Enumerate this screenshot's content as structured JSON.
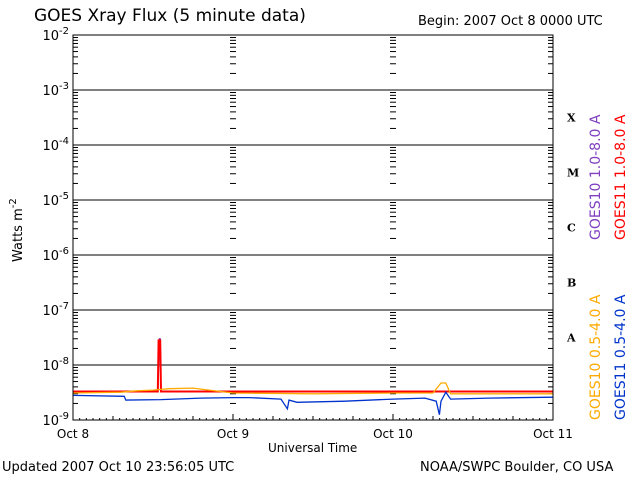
{
  "header": {
    "title": "GOES Xray Flux (5 minute data)",
    "begin": "Begin:  2007 Oct 8 0000 UTC"
  },
  "footer": {
    "updated": "Updated 2007 Oct 10 23:56:05 UTC",
    "credit": "NOAA/SWPC Boulder, CO USA"
  },
  "chart_data": {
    "type": "line",
    "title": "GOES Xray Flux (5 minute data)",
    "xlabel": "Universal Time",
    "ylabel": "Watts m",
    "ylabel_sup": "-2",
    "y_scale": "log",
    "ylim": [
      1e-09,
      0.01
    ],
    "xlim": [
      0,
      3
    ],
    "x_unit": "days since 2007 Oct 8 0000 UTC",
    "grid": true,
    "x_ticks": [
      {
        "x": 0,
        "label": "Oct 8"
      },
      {
        "x": 1,
        "label": "Oct 9"
      },
      {
        "x": 2,
        "label": "Oct 10"
      },
      {
        "x": 3,
        "label": "Oct 11"
      }
    ],
    "y_ticks": [
      {
        "base": "10",
        "exp": "-9",
        "value": 1e-09
      },
      {
        "base": "10",
        "exp": "-8",
        "value": 1e-08
      },
      {
        "base": "10",
        "exp": "-7",
        "value": 1e-07
      },
      {
        "base": "10",
        "exp": "-6",
        "value": 1e-06
      },
      {
        "base": "10",
        "exp": "-5",
        "value": 1e-05
      },
      {
        "base": "10",
        "exp": "-4",
        "value": 0.0001
      },
      {
        "base": "10",
        "exp": "-3",
        "value": 0.001
      },
      {
        "base": "10",
        "exp": "-2",
        "value": 0.01
      }
    ],
    "flare_classes": [
      {
        "label": "A",
        "value": 3.16e-08
      },
      {
        "label": "B",
        "value": 3.16e-07
      },
      {
        "label": "C",
        "value": 3.16e-06
      },
      {
        "label": "M",
        "value": 3.16e-05
      },
      {
        "label": "X",
        "value": 0.000316
      }
    ],
    "legend_position": "right, vertical",
    "series": [
      {
        "name": "GOES10 1.0-8.0 A",
        "color": "#7f3fbf",
        "points": [
          [
            0,
            3.25e-09
          ],
          [
            0.48,
            3.25e-09
          ],
          [
            0.53,
            3.3e-09
          ],
          [
            0.54,
            3e-08
          ],
          [
            0.545,
            3e-08
          ],
          [
            0.55,
            3.3e-09
          ],
          [
            1.0,
            3.25e-09
          ],
          [
            3,
            3.25e-09
          ]
        ]
      },
      {
        "name": "GOES11 1.0-8.0 A",
        "color": "#ff0000",
        "points": [
          [
            0,
            3.3e-09
          ],
          [
            0.53,
            3.3e-09
          ],
          [
            0.535,
            2.8e-08
          ],
          [
            0.545,
            2.8e-08
          ],
          [
            0.55,
            3.3e-09
          ],
          [
            3,
            3.3e-09
          ]
        ]
      },
      {
        "name": "GOES10 0.5-4.0 A",
        "color": "#ffaa00",
        "points": [
          [
            0,
            3.1e-09
          ],
          [
            0.3,
            3.2e-09
          ],
          [
            0.4,
            3.4e-09
          ],
          [
            0.5,
            3.5e-09
          ],
          [
            0.6,
            3.7e-09
          ],
          [
            0.75,
            3.8e-09
          ],
          [
            0.85,
            3.5e-09
          ],
          [
            1.0,
            3.1e-09
          ],
          [
            1.5,
            3e-09
          ],
          [
            2.0,
            3.1e-09
          ],
          [
            2.25,
            3.1e-09
          ],
          [
            2.3,
            4.7e-09
          ],
          [
            2.33,
            4.7e-09
          ],
          [
            2.36,
            3e-09
          ],
          [
            2.6,
            3e-09
          ],
          [
            3,
            3e-09
          ]
        ]
      },
      {
        "name": "GOES11 0.5-4.0 A",
        "color": "#0033cc",
        "points": [
          [
            0,
            2.8e-09
          ],
          [
            0.32,
            2.7e-09
          ],
          [
            0.33,
            2.3e-09
          ],
          [
            0.55,
            2.35e-09
          ],
          [
            0.8,
            2.5e-09
          ],
          [
            1.0,
            2.55e-09
          ],
          [
            1.1,
            2.55e-09
          ],
          [
            1.3,
            2.4e-09
          ],
          [
            1.34,
            1.6e-09
          ],
          [
            1.35,
            2.3e-09
          ],
          [
            1.4,
            2.1e-09
          ],
          [
            1.7,
            2.2e-09
          ],
          [
            2.0,
            2.4e-09
          ],
          [
            2.2,
            2.5e-09
          ],
          [
            2.27,
            2.2e-09
          ],
          [
            2.29,
            1.25e-09
          ],
          [
            2.3,
            2.2e-09
          ],
          [
            2.33,
            3.2e-09
          ],
          [
            2.36,
            2.4e-09
          ],
          [
            2.6,
            2.5e-09
          ],
          [
            3,
            2.6e-09
          ]
        ]
      }
    ]
  }
}
